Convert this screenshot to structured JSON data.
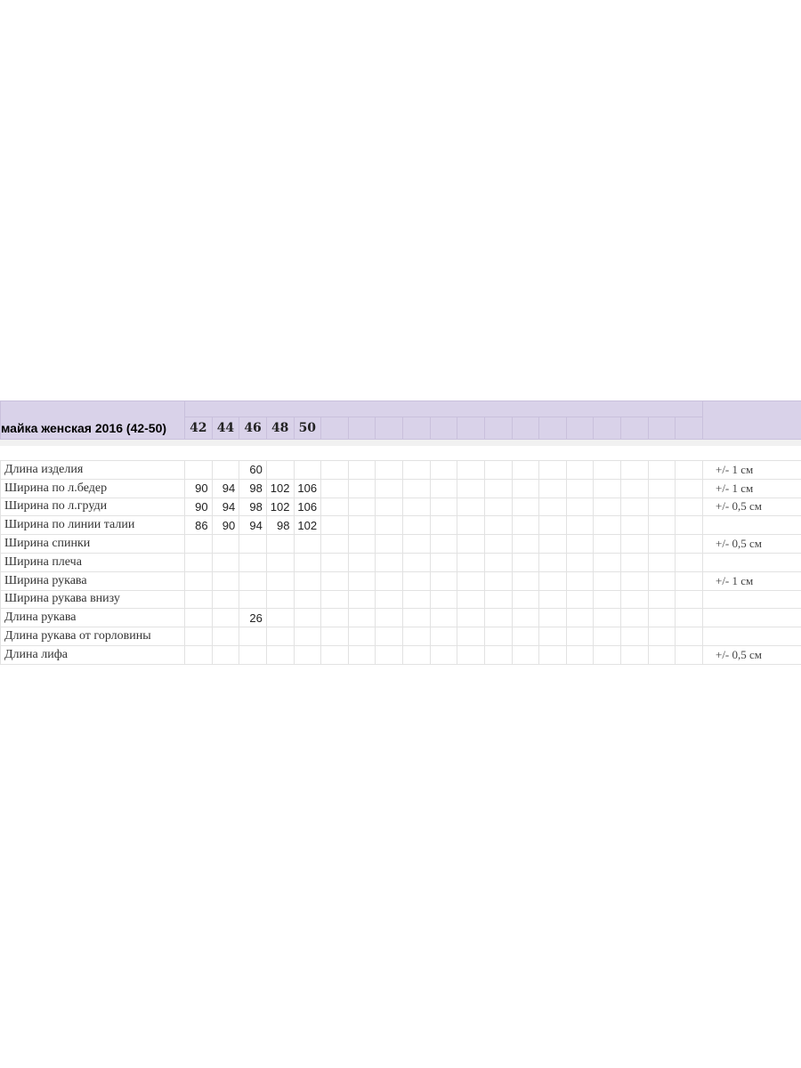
{
  "sheet": {
    "title": "майка женская 2016 (42-50)",
    "sizes": [
      "42",
      "44",
      "46",
      "48",
      "50"
    ],
    "extra_columns": 14,
    "header_color": "#d9d2e9",
    "rows": [
      {
        "label": "Длина изделия",
        "values": [
          "",
          "",
          "60",
          "",
          ""
        ],
        "note": "+/- 1 см"
      },
      {
        "label": "Ширина по л.бедер",
        "values": [
          "90",
          "94",
          "98",
          "102",
          "106"
        ],
        "note": "+/- 1 см"
      },
      {
        "label": "Ширина по л.груди",
        "values": [
          "90",
          "94",
          "98",
          "102",
          "106"
        ],
        "note": "+/- 0,5 см"
      },
      {
        "label": "Ширина по линии талии",
        "values": [
          "86",
          "90",
          "94",
          "98",
          "102"
        ],
        "note": ""
      },
      {
        "label": "Ширина спинки",
        "values": [
          "",
          "",
          "",
          "",
          ""
        ],
        "note": "+/- 0,5 см"
      },
      {
        "label": "Ширина плеча",
        "values": [
          "",
          "",
          "",
          "",
          ""
        ],
        "note": ""
      },
      {
        "label": " Ширина рукава",
        "values": [
          "",
          "",
          "",
          "",
          ""
        ],
        "note": "+/- 1 см"
      },
      {
        "label": "Ширина рукава внизу",
        "values": [
          "",
          "",
          "",
          "",
          ""
        ],
        "note": ""
      },
      {
        "label": "Длина рукава",
        "values": [
          "",
          "",
          "26",
          "",
          ""
        ],
        "note": ""
      },
      {
        "label": "Длина рукава  от горловины",
        "values": [
          "",
          "",
          "",
          "",
          ""
        ],
        "note": ""
      },
      {
        "label": "Длина лифа",
        "values": [
          "",
          "",
          "",
          "",
          ""
        ],
        "note": "+/- 0,5 см"
      }
    ]
  }
}
